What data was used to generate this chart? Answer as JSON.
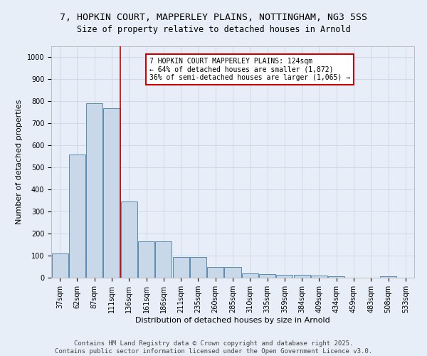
{
  "title_line1": "7, HOPKIN COURT, MAPPERLEY PLAINS, NOTTINGHAM, NG3 5SS",
  "title_line2": "Size of property relative to detached houses in Arnold",
  "xlabel": "Distribution of detached houses by size in Arnold",
  "ylabel": "Number of detached properties",
  "categories": [
    "37sqm",
    "62sqm",
    "87sqm",
    "111sqm",
    "136sqm",
    "161sqm",
    "186sqm",
    "211sqm",
    "235sqm",
    "260sqm",
    "285sqm",
    "310sqm",
    "335sqm",
    "359sqm",
    "384sqm",
    "409sqm",
    "434sqm",
    "459sqm",
    "483sqm",
    "508sqm",
    "533sqm"
  ],
  "values": [
    110,
    560,
    790,
    770,
    345,
    165,
    165,
    95,
    95,
    50,
    50,
    20,
    15,
    12,
    12,
    10,
    8,
    0,
    0,
    5,
    0
  ],
  "bar_color": "#c8d8e8",
  "bar_edge_color": "#5a8ab0",
  "red_line_x": 3.5,
  "annotation_text": "7 HOPKIN COURT MAPPERLEY PLAINS: 124sqm\n← 64% of detached houses are smaller (1,872)\n36% of semi-detached houses are larger (1,065) →",
  "annotation_box_color": "#ffffff",
  "annotation_box_edge": "#cc0000",
  "red_line_color": "#cc0000",
  "ylim": [
    0,
    1050
  ],
  "yticks": [
    0,
    100,
    200,
    300,
    400,
    500,
    600,
    700,
    800,
    900,
    1000
  ],
  "grid_color": "#ccd6e8",
  "background_color": "#e8eef8",
  "footer_text": "Contains HM Land Registry data © Crown copyright and database right 2025.\nContains public sector information licensed under the Open Government Licence v3.0.",
  "title_fontsize": 9.5,
  "subtitle_fontsize": 8.5,
  "axis_label_fontsize": 8,
  "tick_fontsize": 7,
  "annotation_fontsize": 7,
  "footer_fontsize": 6.5
}
